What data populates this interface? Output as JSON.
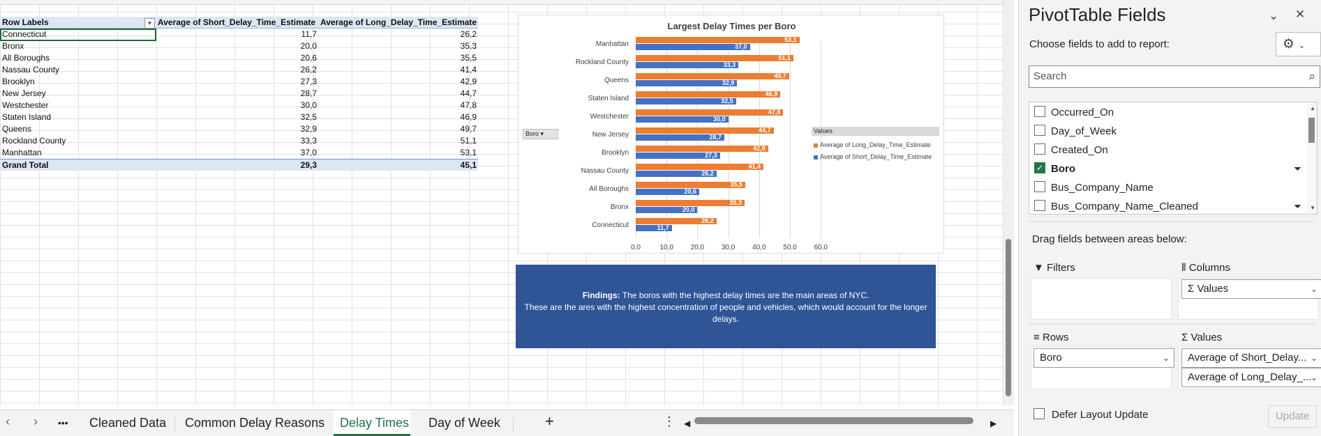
{
  "pivot": {
    "headers": [
      "Row Labels",
      "Average of Short_Delay_Time_Estimate",
      "Average of Long_Delay_Time_Estimate"
    ],
    "rows": [
      {
        "label": "Connecticut",
        "short": "11,7",
        "long": "26,2"
      },
      {
        "label": "Bronx",
        "short": "20,0",
        "long": "35,3"
      },
      {
        "label": "All Boroughs",
        "short": "20,6",
        "long": "35,5"
      },
      {
        "label": "Nassau County",
        "short": "26,2",
        "long": "41,4"
      },
      {
        "label": "Brooklyn",
        "short": "27,3",
        "long": "42,9"
      },
      {
        "label": "New Jersey",
        "short": "28,7",
        "long": "44,7"
      },
      {
        "label": "Westchester",
        "short": "30,0",
        "long": "47,8"
      },
      {
        "label": "Staten Island",
        "short": "32,5",
        "long": "46,9"
      },
      {
        "label": "Queens",
        "short": "32,9",
        "long": "49,7"
      },
      {
        "label": "Rockland County",
        "short": "33,3",
        "long": "51,1"
      },
      {
        "label": "Manhattan",
        "short": "37,0",
        "long": "53,1"
      }
    ],
    "total": {
      "label": "Grand Total",
      "short": "29,3",
      "long": "45,1"
    }
  },
  "chart_data": {
    "type": "bar",
    "orientation": "horizontal",
    "title": "Largest Delay Times per Boro",
    "categories": [
      "Manhattan",
      "Rockland County",
      "Queens",
      "Staten Island",
      "Westchester",
      "New Jersey",
      "Brooklyn",
      "Nassau County",
      "All Boroughs",
      "Bronx",
      "Connecticut"
    ],
    "series": [
      {
        "name": "Average of Long_Delay_Time_Estimate",
        "color": "#ed7d31",
        "values": [
          53.1,
          51.1,
          49.7,
          46.9,
          47.8,
          44.7,
          42.9,
          41.4,
          35.5,
          35.3,
          26.2
        ]
      },
      {
        "name": "Average of Short_Delay_Time_Estimate",
        "color": "#4472c4",
        "values": [
          37.0,
          33.3,
          32.9,
          32.5,
          30.0,
          28.7,
          27.3,
          26.2,
          20.6,
          20.0,
          11.7
        ]
      }
    ],
    "xlim": [
      0,
      60
    ],
    "xticks": [
      "0,0",
      "10,0",
      "20,0",
      "30,0",
      "40,0",
      "50,0",
      "60,0"
    ],
    "legend_title": "Values",
    "legend_position": "right",
    "field_button": "Boro",
    "grid": true
  },
  "findings": {
    "lead": "Findings:",
    "text": " The boros with the highest delay times are the main areas of NYC.",
    "text2": "These are the ares with the highest concentration of people and vehicles, which would account for the longer delays."
  },
  "tabs": {
    "more": "•••",
    "items": [
      "Cleaned Data",
      "Common Delay Reasons",
      "Delay Times",
      "Day of Week"
    ],
    "active": "Delay Times",
    "add": "+",
    "prev": "‹",
    "next": "›",
    "menu": "⋮"
  },
  "pane": {
    "title": "PivotTable Fields",
    "subtitle": "Choose fields to add to report:",
    "search_placeholder": "Search",
    "fields": [
      {
        "name": "Occurred_On",
        "checked": false,
        "filter": false
      },
      {
        "name": "Day_of_Week",
        "checked": false,
        "filter": false
      },
      {
        "name": "Created_On",
        "checked": false,
        "filter": false
      },
      {
        "name": "Boro",
        "checked": true,
        "filter": true
      },
      {
        "name": "Bus_Company_Name",
        "checked": false,
        "filter": false
      },
      {
        "name": "Bus_Company_Name_Cleaned",
        "checked": false,
        "filter": true
      }
    ],
    "drag_label": "Drag fields between areas below:",
    "areas": {
      "filters": "Filters",
      "columns": "Columns",
      "rows": "Rows",
      "values": "Values"
    },
    "columns_item": "Σ Values",
    "rows_item": "Boro",
    "values_items": [
      "Average of Short_Delay...",
      "Average of Long_Delay_..."
    ],
    "defer": "Defer Layout Update",
    "update": "Update"
  }
}
